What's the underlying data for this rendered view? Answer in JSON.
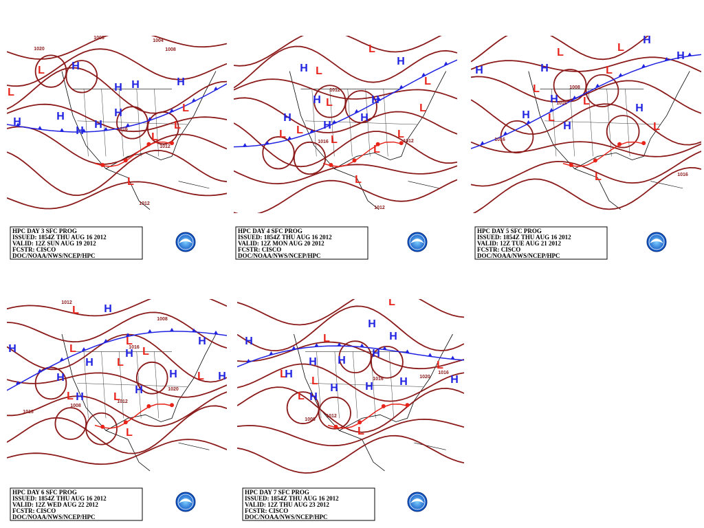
{
  "panels": [
    {
      "caption": [
        "HPC DAY 3 SFC PROG",
        "ISSUED: 1854Z THU AUG 16 2012",
        "VALID: 12Z SUN AUG 19 2012",
        "FCSTR: CISCO",
        "DOC/NOAA/NWS/NCEP/HPC"
      ],
      "symbols": [
        "H",
        "L",
        "L",
        "H",
        "H",
        "H",
        "H",
        "H",
        "L",
        "L",
        "L",
        "L",
        "H",
        "H",
        "H",
        "H"
      ],
      "isobar_labels": [
        "1008",
        "1004",
        "1008",
        "1016",
        "1012",
        "1012",
        "1016",
        "1020"
      ]
    },
    {
      "caption": [
        "HPC DAY 4 SFC PROG",
        "ISSUED: 1854Z THU AUG 16 2012",
        "VALID: 12Z MON AUG 20 2012",
        "FCSTR: CISCO",
        "DOC/NOAA/NWS/NCEP/HPC"
      ],
      "symbols": [
        "H",
        "L",
        "L",
        "H",
        "L",
        "L",
        "H",
        "H",
        "L",
        "L",
        "L",
        "H",
        "L",
        "L",
        "H",
        "H",
        "L",
        "L"
      ],
      "isobar_labels": [
        "1008",
        "1012",
        "1012",
        "1016",
        "1012"
      ]
    },
    {
      "caption": [
        "HPC DAY 5 SFC PROG",
        "ISSUED: 1854Z THU AUG 16 2012",
        "VALID: 12Z TUE AUG 21 2012",
        "FCSTR: CISCO",
        "DOC/NOAA/NWS/NCEP/HPC"
      ],
      "symbols": [
        "H",
        "H",
        "L",
        "L",
        "L",
        "H",
        "H",
        "L",
        "H",
        "L",
        "L",
        "H",
        "H",
        "H",
        "L",
        "L"
      ],
      "isobar_labels": [
        "1008",
        "1016",
        "1016",
        "1016",
        "1008"
      ]
    },
    {
      "caption": [
        "HPC DAY 6 SFC PROG",
        "ISSUED: 1854Z THU AUG 16 2012",
        "VALID: 12Z WED AUG 22 2012",
        "FCSTR: CISCO",
        "DOC/NOAA/NWS/NCEP/HPC"
      ],
      "symbols": [
        "H",
        "L",
        "H",
        "L",
        "H",
        "L",
        "H",
        "L",
        "H",
        "H",
        "L",
        "H",
        "H",
        "L",
        "L",
        "H",
        "L",
        "L",
        "H"
      ],
      "isobar_labels": [
        "1012",
        "1008",
        "1016",
        "1016",
        "1020",
        "1012",
        "1008"
      ]
    },
    {
      "caption": [
        "HPC DAY 7 SFC PROG",
        "ISSUED: 1854Z THU AUG 16 2012",
        "VALID: 12Z THU AUG 23 2012",
        "FCSTR: CISCO",
        "DOC/NOAA/NWS/NCEP/HPC"
      ],
      "symbols": [
        "H",
        "L",
        "H",
        "H",
        "H",
        "H",
        "H",
        "L",
        "L",
        "H",
        "L",
        "H",
        "H",
        "H",
        "H",
        "L",
        "H",
        "L",
        "L"
      ],
      "isobar_labels": [
        "1020",
        "1016",
        "1008",
        "1012",
        "1016"
      ]
    }
  ]
}
